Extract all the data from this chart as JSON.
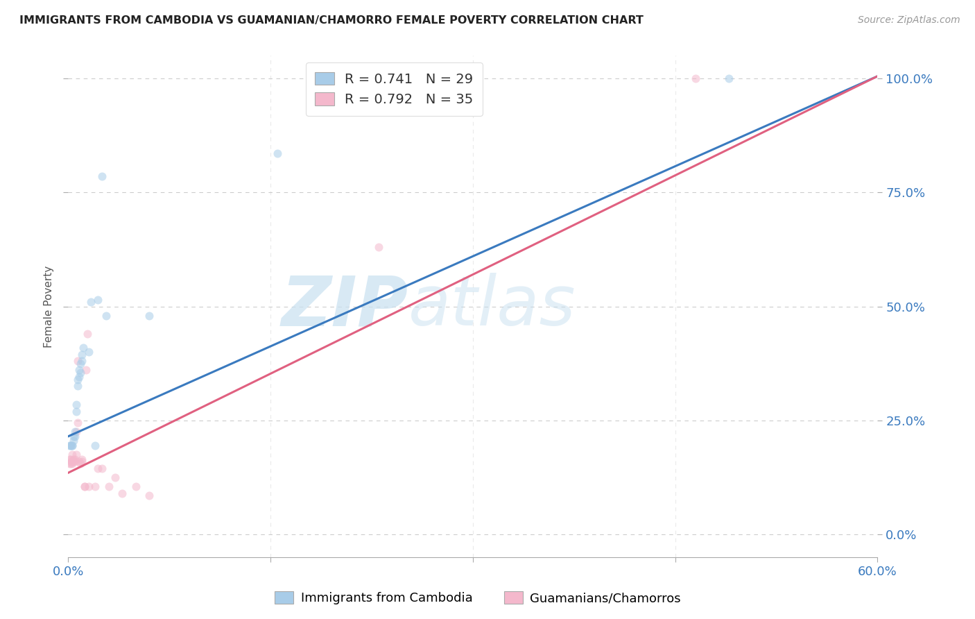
{
  "title": "IMMIGRANTS FROM CAMBODIA VS GUAMANIAN/CHAMORRO FEMALE POVERTY CORRELATION CHART",
  "source": "Source: ZipAtlas.com",
  "ylabel": "Female Poverty",
  "right_yticks": [
    "100.0%",
    "75.0%",
    "50.0%",
    "25.0%",
    "0.0%"
  ],
  "right_ytick_vals": [
    1.0,
    0.75,
    0.5,
    0.25,
    0.0
  ],
  "xlim": [
    0.0,
    0.6
  ],
  "ylim": [
    -0.05,
    1.05
  ],
  "blue_color": "#a8cce8",
  "pink_color": "#f4b8cc",
  "blue_line_color": "#3a7abf",
  "pink_line_color": "#e06080",
  "blue_scatter": [
    [
      0.001,
      0.195
    ],
    [
      0.002,
      0.195
    ],
    [
      0.002,
      0.195
    ],
    [
      0.003,
      0.195
    ],
    [
      0.003,
      0.195
    ],
    [
      0.004,
      0.205
    ],
    [
      0.004,
      0.215
    ],
    [
      0.005,
      0.215
    ],
    [
      0.005,
      0.225
    ],
    [
      0.006,
      0.27
    ],
    [
      0.006,
      0.285
    ],
    [
      0.007,
      0.325
    ],
    [
      0.007,
      0.34
    ],
    [
      0.008,
      0.345
    ],
    [
      0.008,
      0.36
    ],
    [
      0.009,
      0.355
    ],
    [
      0.009,
      0.375
    ],
    [
      0.01,
      0.38
    ],
    [
      0.01,
      0.395
    ],
    [
      0.011,
      0.41
    ],
    [
      0.015,
      0.4
    ],
    [
      0.017,
      0.51
    ],
    [
      0.02,
      0.195
    ],
    [
      0.022,
      0.515
    ],
    [
      0.025,
      0.785
    ],
    [
      0.028,
      0.48
    ],
    [
      0.06,
      0.48
    ],
    [
      0.155,
      0.835
    ],
    [
      0.49,
      1.0
    ]
  ],
  "pink_scatter": [
    [
      0.001,
      0.155
    ],
    [
      0.001,
      0.165
    ],
    [
      0.002,
      0.155
    ],
    [
      0.002,
      0.16
    ],
    [
      0.002,
      0.165
    ],
    [
      0.003,
      0.155
    ],
    [
      0.003,
      0.16
    ],
    [
      0.003,
      0.175
    ],
    [
      0.004,
      0.16
    ],
    [
      0.004,
      0.165
    ],
    [
      0.005,
      0.16
    ],
    [
      0.005,
      0.165
    ],
    [
      0.006,
      0.175
    ],
    [
      0.006,
      0.225
    ],
    [
      0.007,
      0.245
    ],
    [
      0.007,
      0.38
    ],
    [
      0.008,
      0.16
    ],
    [
      0.009,
      0.155
    ],
    [
      0.01,
      0.16
    ],
    [
      0.01,
      0.165
    ],
    [
      0.012,
      0.105
    ],
    [
      0.012,
      0.105
    ],
    [
      0.013,
      0.36
    ],
    [
      0.014,
      0.44
    ],
    [
      0.015,
      0.105
    ],
    [
      0.02,
      0.105
    ],
    [
      0.022,
      0.145
    ],
    [
      0.025,
      0.145
    ],
    [
      0.03,
      0.105
    ],
    [
      0.035,
      0.125
    ],
    [
      0.04,
      0.09
    ],
    [
      0.05,
      0.105
    ],
    [
      0.06,
      0.085
    ],
    [
      0.23,
      0.63
    ],
    [
      0.465,
      1.0
    ]
  ],
  "blue_line_x": [
    0.0,
    0.6
  ],
  "blue_line_y": [
    0.215,
    1.005
  ],
  "pink_line_x": [
    0.0,
    0.6
  ],
  "pink_line_y": [
    0.135,
    1.005
  ],
  "watermark_zip": "ZIP",
  "watermark_atlas": "atlas",
  "marker_size": 75,
  "marker_alpha": 0.55,
  "line_width": 2.2,
  "background_color": "#ffffff",
  "grid_color": "#cccccc"
}
